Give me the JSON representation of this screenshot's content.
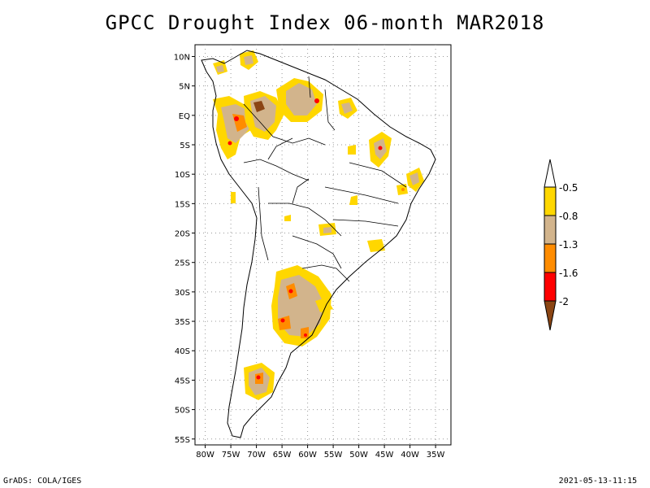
{
  "title": "GPCC Drought Index 06-month MAR2018",
  "footer": {
    "left": "GrADS: COLA/IGES",
    "right": "2021-05-13-11:15"
  },
  "map": {
    "lat_labels": [
      "10N",
      "5N",
      "EQ",
      "5S",
      "10S",
      "15S",
      "20S",
      "25S",
      "30S",
      "35S",
      "40S",
      "45S",
      "50S",
      "55S"
    ],
    "lon_labels": [
      "80W",
      "75W",
      "70W",
      "65W",
      "60W",
      "55W",
      "50W",
      "45W",
      "40W",
      "35W"
    ],
    "lat_values": [
      10,
      5,
      0,
      -5,
      -10,
      -15,
      -20,
      -25,
      -30,
      -35,
      -40,
      -45,
      -50,
      -55
    ],
    "lon_values": [
      -80,
      -75,
      -70,
      -65,
      -60,
      -55,
      -50,
      -45,
      -40,
      -35
    ]
  },
  "colorbar": {
    "labels": [
      "-0.5",
      "-0.8",
      "-1.3",
      "-1.6",
      "-2"
    ],
    "colors": [
      "#ffffff",
      "#ffd700",
      "#d2b48c",
      "#ff8c00",
      "#ff0000",
      "#8b4513"
    ]
  },
  "palette": {
    "yellow": "#ffd700",
    "tan": "#d2b48c",
    "orange": "#ff8c00",
    "red": "#ff0000",
    "brown": "#8b4513"
  }
}
